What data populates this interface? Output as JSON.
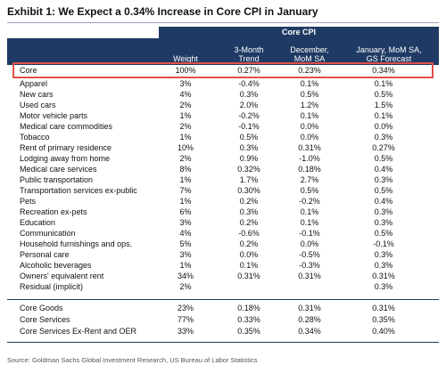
{
  "title": "Exhibit 1: We Expect a 0.34% Increase in Core CPI in January",
  "group_header": "Core CPI",
  "columns": [
    "Weight",
    "3-Month\nTrend",
    "December,\nMoM SA",
    "January, MoM SA,\nGS Forecast"
  ],
  "core_row": {
    "label": "Core",
    "weight": "100%",
    "trend": "0.27%",
    "dec": "0.23%",
    "jan": "0.34%"
  },
  "rows": [
    {
      "label": "Apparel",
      "weight": "3%",
      "trend": "-0.4%",
      "dec": "0.1%",
      "jan": "0.1%"
    },
    {
      "label": "New cars",
      "weight": "4%",
      "trend": "0.3%",
      "dec": "0.5%",
      "jan": "0.5%"
    },
    {
      "label": "Used cars",
      "weight": "2%",
      "trend": "2.0%",
      "dec": "1.2%",
      "jan": "1.5%"
    },
    {
      "label": "Motor vehicle parts",
      "weight": "1%",
      "trend": "-0.2%",
      "dec": "0.1%",
      "jan": "0.1%"
    },
    {
      "label": "Medical care commodities",
      "weight": "2%",
      "trend": "-0.1%",
      "dec": "0.0%",
      "jan": "0.0%"
    },
    {
      "label": "Tobacco",
      "weight": "1%",
      "trend": "0.5%",
      "dec": "0.0%",
      "jan": "0.3%"
    },
    {
      "label": "Rent of primary residence",
      "weight": "10%",
      "trend": "0.3%",
      "dec": "0.31%",
      "jan": "0.27%"
    },
    {
      "label": "Lodging away from home",
      "weight": "2%",
      "trend": "0.9%",
      "dec": "-1.0%",
      "jan": "0.5%"
    },
    {
      "label": "Medical care services",
      "weight": "8%",
      "trend": "0.32%",
      "dec": "0.18%",
      "jan": "0.4%"
    },
    {
      "label": "Public transportation",
      "weight": "1%",
      "trend": "1.7%",
      "dec": "2.7%",
      "jan": "0.3%"
    },
    {
      "label": "Transportation services ex-public",
      "weight": "7%",
      "trend": "0.30%",
      "dec": "0.5%",
      "jan": "0.5%"
    },
    {
      "label": "Pets",
      "weight": "1%",
      "trend": "0.2%",
      "dec": "-0.2%",
      "jan": "0.4%"
    },
    {
      "label": "Recreation ex-pets",
      "weight": "6%",
      "trend": "0.3%",
      "dec": "0.1%",
      "jan": "0.3%"
    },
    {
      "label": "Education",
      "weight": "3%",
      "trend": "0.2%",
      "dec": "0.1%",
      "jan": "0.3%"
    },
    {
      "label": "Communication",
      "weight": "4%",
      "trend": "-0.6%",
      "dec": "-0.1%",
      "jan": "0.5%"
    },
    {
      "label": "Household furnishings and ops.",
      "weight": "5%",
      "trend": "0.2%",
      "dec": "0.0%",
      "jan": "-0.1%"
    },
    {
      "label": "Personal care",
      "weight": "3%",
      "trend": "0.0%",
      "dec": "-0.5%",
      "jan": "0.3%"
    },
    {
      "label": "Alcoholic beverages",
      "weight": "1%",
      "trend": "0.1%",
      "dec": "-0.3%",
      "jan": "0.3%"
    },
    {
      "label": "Owners' equivalent rent",
      "weight": "34%",
      "trend": "0.31%",
      "dec": "0.31%",
      "jan": "0.31%"
    },
    {
      "label": "Residual (implicit)",
      "weight": "2%",
      "trend": "",
      "dec": "",
      "jan": "0.3%"
    }
  ],
  "summary_rows": [
    {
      "label": "Core Goods",
      "weight": "23%",
      "trend": "0.18%",
      "dec": "0.31%",
      "jan": "0.31%"
    },
    {
      "label": "Core Services",
      "weight": "77%",
      "trend": "0.33%",
      "dec": "0.28%",
      "jan": "0.35%"
    },
    {
      "label": "Core Services Ex-Rent and OER",
      "weight": "33%",
      "trend": "0.35%",
      "dec": "0.34%",
      "jan": "0.40%"
    }
  ],
  "source": "Source: Goldman Sachs Global Investment Research, US Bureau of Labor Statistics",
  "colors": {
    "header": "#1f3a64",
    "highlight_box": "#e0504a"
  }
}
